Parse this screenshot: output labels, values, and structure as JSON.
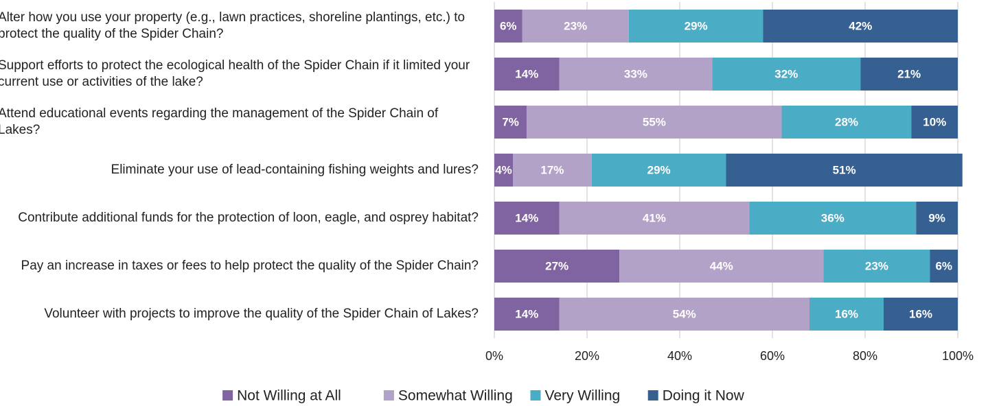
{
  "chart_data": {
    "type": "stacked_bar_horizontal",
    "categories": [
      "Alter how you use your property (e.g., lawn practices, shoreline plantings, etc.) to protect the quality of the Spider Chain?",
      "Support efforts to protect the ecological health of the Spider Chain if it limited your current use or activities of the lake?",
      "Attend educational events regarding the management of the Spider Chain of Lakes?",
      "Eliminate your use of lead-containing fishing weights and lures?",
      "Contribute additional funds for the protection of loon, eagle, and osprey habitat?",
      "Pay an increase in taxes or fees to help protect the quality of the Spider Chain?",
      "Volunteer with projects to improve the quality of the Spider Chain of Lakes?"
    ],
    "series": [
      {
        "name": "Not Willing at All",
        "color": "#8064a2",
        "values": [
          6,
          14,
          7,
          4,
          14,
          27,
          14
        ],
        "value_labels": [
          "6%",
          "14%",
          "7%",
          "4%",
          "14%",
          "27%",
          "14%"
        ]
      },
      {
        "name": "Somewhat Willing",
        "color": "#b3a2c7",
        "values": [
          23,
          33,
          55,
          17,
          41,
          44,
          54
        ],
        "value_labels": [
          "23%",
          "33%",
          "55%",
          "17%",
          "41%",
          "44%",
          "54%"
        ]
      },
      {
        "name": "Very Willing",
        "color": "#4bacc6",
        "values": [
          29,
          32,
          28,
          29,
          36,
          23,
          16
        ],
        "value_labels": [
          "29%",
          "32%",
          "28%",
          "29%",
          "36%",
          "23%",
          "16%"
        ]
      },
      {
        "name": "Doing it Now",
        "color": "#366092",
        "values": [
          42,
          21,
          10,
          51,
          9,
          6,
          16
        ],
        "value_labels": [
          "42%",
          "21%",
          "10%",
          "51%",
          "9%",
          "6%",
          "16%"
        ]
      }
    ],
    "xlim": [
      0,
      100
    ],
    "xticks": [
      {
        "value": 0,
        "label": "0%"
      },
      {
        "value": 20,
        "label": "20%"
      },
      {
        "value": 40,
        "label": "40%"
      },
      {
        "value": 60,
        "label": "60%"
      },
      {
        "value": 80,
        "label": "80%"
      },
      {
        "value": 100,
        "label": "100%"
      }
    ],
    "grid": true,
    "legend": "bottom"
  }
}
